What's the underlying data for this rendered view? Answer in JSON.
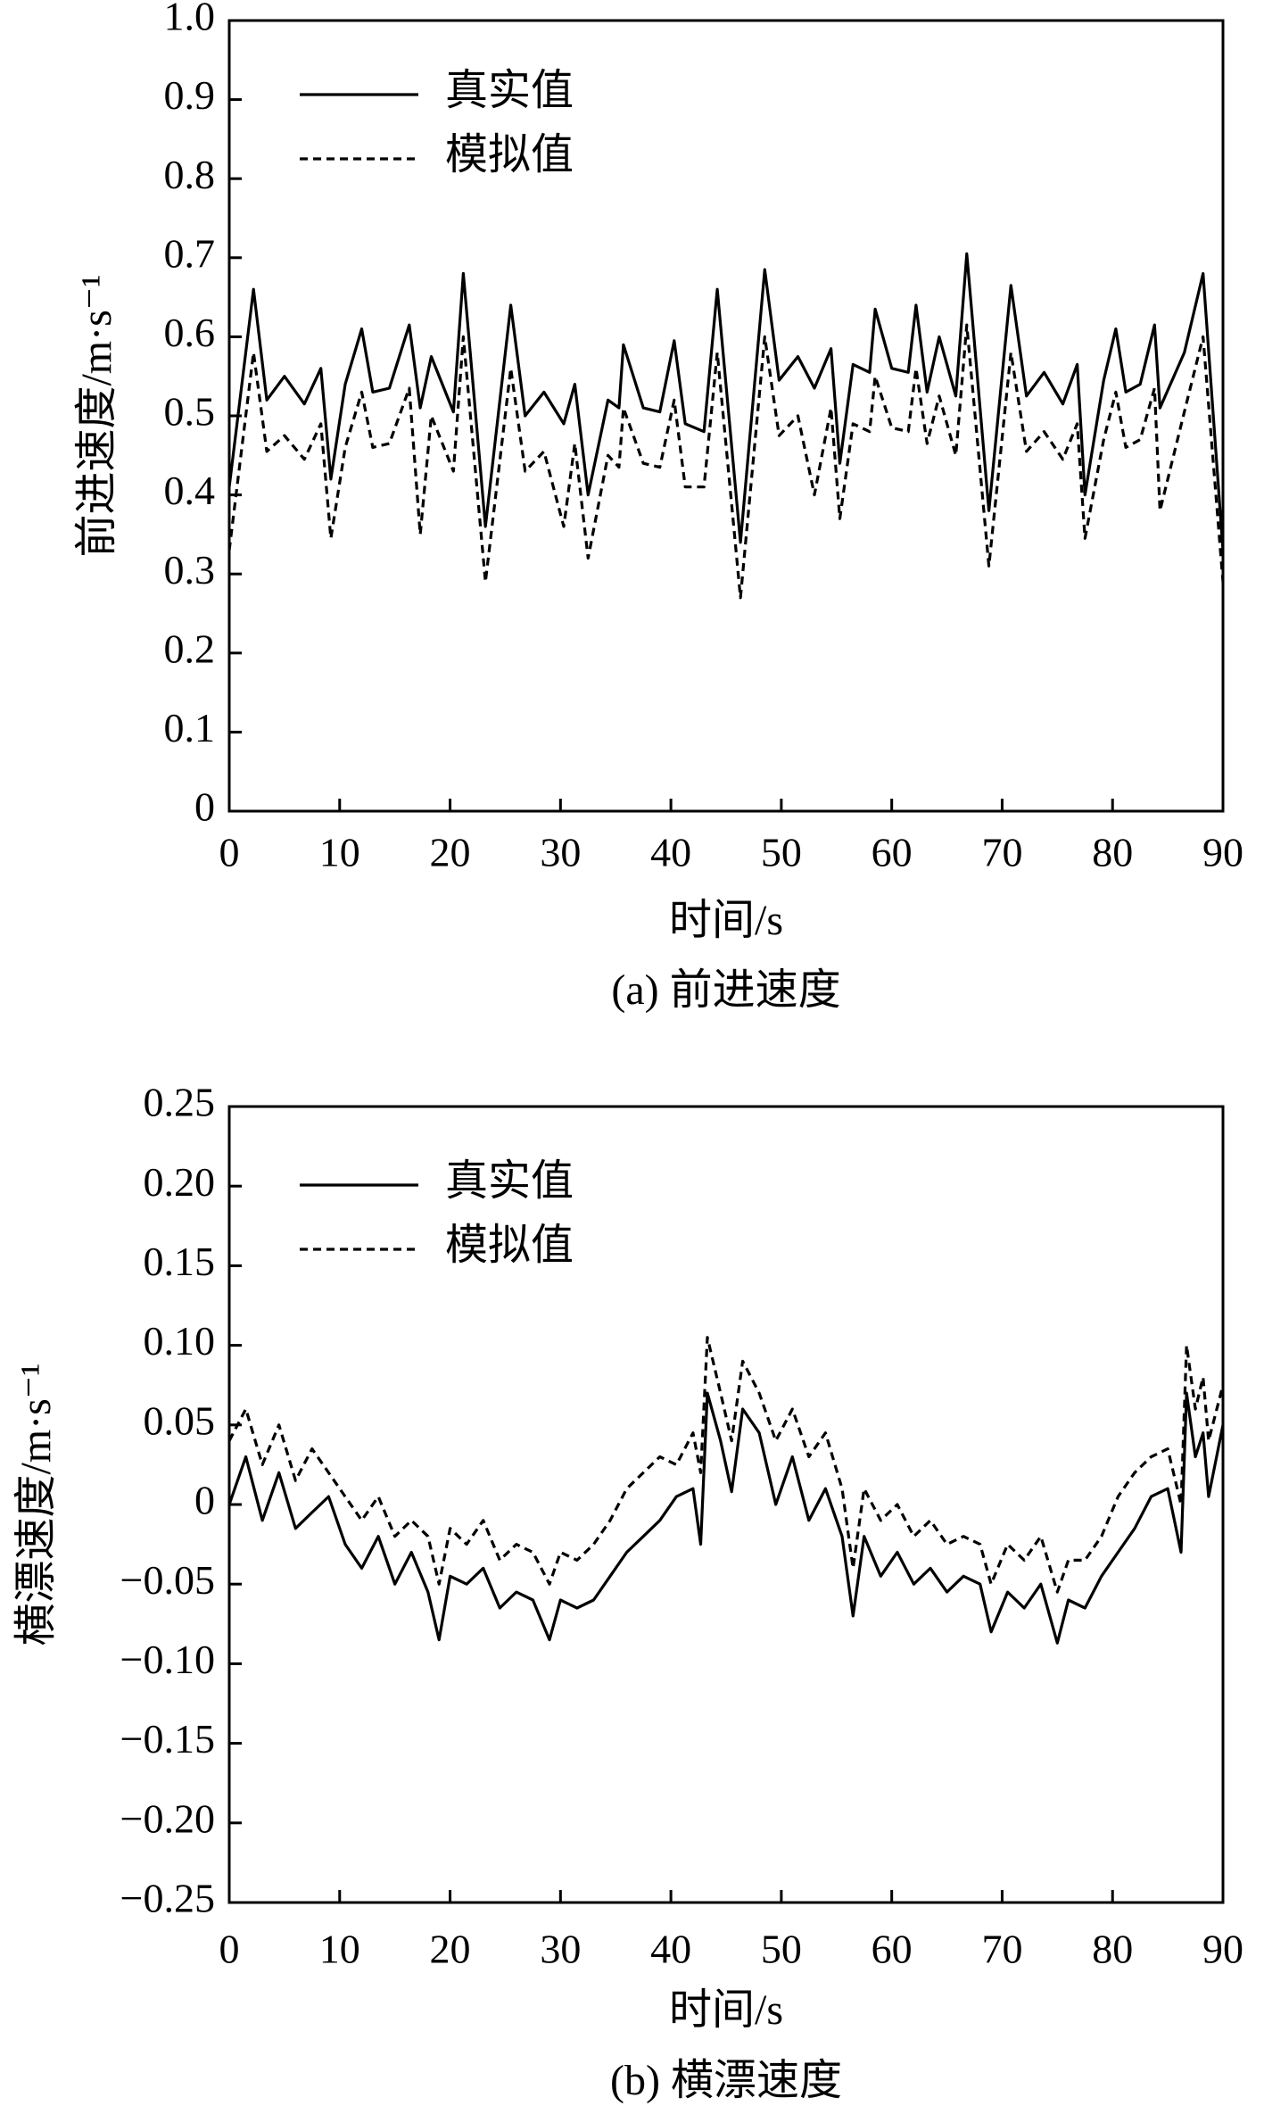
{
  "chart_data": [
    {
      "type": "line",
      "caption": "(a) 前进速度",
      "xlabel": "时间/s",
      "ylabel": "前进速度/m·s⁻¹",
      "x": [
        0,
        2.2,
        3.4,
        5,
        6.8,
        8.3,
        9.2,
        10.5,
        12,
        13,
        14.5,
        16.3,
        17.3,
        18.3,
        20.3,
        21.2,
        23.2,
        25.5,
        26.8,
        28.5,
        30.3,
        31.3,
        32.5,
        34.3,
        35.3,
        35.7,
        37.5,
        39,
        40.3,
        41.3,
        43,
        44.2,
        46.3,
        48.5,
        49.8,
        51.5,
        53,
        54.5,
        55.3,
        56.5,
        58,
        58.5,
        60,
        61.5,
        62.2,
        63.2,
        64.3,
        65.8,
        66.8,
        68.8,
        70.8,
        72.2,
        73.8,
        75.5,
        76.8,
        77.5,
        79.2,
        80.3,
        81.2,
        82.5,
        83.8,
        84.3,
        86.5,
        88.2,
        90
      ],
      "series": [
        {
          "name": "真实值",
          "color": "#000000",
          "line_style": "solid",
          "values": [
            0.41,
            0.66,
            0.52,
            0.55,
            0.515,
            0.56,
            0.42,
            0.54,
            0.61,
            0.53,
            0.535,
            0.615,
            0.51,
            0.575,
            0.505,
            0.68,
            0.36,
            0.64,
            0.5,
            0.53,
            0.49,
            0.54,
            0.4,
            0.52,
            0.51,
            0.59,
            0.51,
            0.505,
            0.595,
            0.49,
            0.48,
            0.66,
            0.34,
            0.685,
            0.545,
            0.575,
            0.535,
            0.585,
            0.44,
            0.565,
            0.555,
            0.635,
            0.56,
            0.555,
            0.64,
            0.53,
            0.6,
            0.525,
            0.705,
            0.38,
            0.665,
            0.525,
            0.555,
            0.515,
            0.565,
            0.4,
            0.545,
            0.61,
            0.53,
            0.54,
            0.615,
            0.51,
            0.58,
            0.68,
            0.33
          ]
        },
        {
          "name": "模拟值",
          "color": "#000000",
          "line_style": "dashed",
          "values": [
            0.33,
            0.58,
            0.455,
            0.475,
            0.445,
            0.49,
            0.345,
            0.46,
            0.53,
            0.46,
            0.465,
            0.535,
            0.35,
            0.5,
            0.43,
            0.6,
            0.29,
            0.56,
            0.43,
            0.455,
            0.36,
            0.465,
            0.32,
            0.45,
            0.435,
            0.51,
            0.44,
            0.435,
            0.52,
            0.41,
            0.41,
            0.58,
            0.27,
            0.6,
            0.475,
            0.5,
            0.4,
            0.51,
            0.37,
            0.49,
            0.48,
            0.55,
            0.485,
            0.48,
            0.56,
            0.465,
            0.525,
            0.45,
            0.615,
            0.31,
            0.58,
            0.455,
            0.48,
            0.445,
            0.49,
            0.345,
            0.47,
            0.53,
            0.46,
            0.47,
            0.535,
            0.38,
            0.505,
            0.6,
            0.29
          ]
        }
      ],
      "xlim": [
        0,
        90
      ],
      "xticks": [
        0,
        10,
        20,
        30,
        40,
        50,
        60,
        70,
        80,
        90
      ],
      "ylim": [
        0,
        1
      ],
      "yticks": [
        0,
        0.1,
        0.2,
        0.3,
        0.4,
        0.5,
        0.6,
        0.7,
        0.8,
        0.9,
        {
          "value": 1,
          "label": "1.0"
        }
      ],
      "grid": false,
      "legend": "upper left"
    },
    {
      "type": "line",
      "caption": "(b) 横漂速度",
      "xlabel": "时间/s",
      "ylabel": "横漂速度/m·s⁻¹",
      "x": [
        0,
        1.5,
        3,
        4.5,
        6,
        7.5,
        9,
        10.5,
        12,
        13.5,
        15,
        16.5,
        18,
        19,
        20,
        21.5,
        23,
        24.5,
        26,
        27.5,
        29,
        30,
        31.5,
        33,
        34.5,
        36,
        37.5,
        39,
        40.5,
        42,
        42.7,
        43.3,
        44.5,
        45.5,
        46.5,
        48,
        49.5,
        51,
        52.5,
        54,
        55.5,
        56.5,
        57.5,
        59,
        60.5,
        62,
        63.5,
        65,
        66.5,
        68,
        69,
        70.5,
        72,
        73.5,
        75,
        76,
        77.5,
        79,
        80.5,
        82,
        83.5,
        85,
        86.2,
        86.7,
        87.5,
        88.2,
        88.7,
        90
      ],
      "series": [
        {
          "name": "真实值",
          "color": "#000000",
          "line_style": "solid",
          "values": [
            0,
            0.03,
            -0.01,
            0.02,
            -0.015,
            -0.005,
            0.005,
            -0.025,
            -0.04,
            -0.02,
            -0.05,
            -0.03,
            -0.055,
            -0.085,
            -0.045,
            -0.05,
            -0.04,
            -0.065,
            -0.055,
            -0.06,
            -0.085,
            -0.06,
            -0.065,
            -0.06,
            -0.045,
            -0.03,
            -0.02,
            -0.01,
            0.005,
            0.01,
            -0.025,
            0.07,
            0.04,
            0.008,
            0.06,
            0.045,
            0,
            0.03,
            -0.01,
            0.01,
            -0.02,
            -0.07,
            -0.02,
            -0.045,
            -0.03,
            -0.05,
            -0.04,
            -0.055,
            -0.045,
            -0.05,
            -0.08,
            -0.055,
            -0.065,
            -0.05,
            -0.087,
            -0.06,
            -0.065,
            -0.045,
            -0.03,
            -0.015,
            0.005,
            0.01,
            -0.03,
            0.07,
            0.03,
            0.045,
            0.005,
            0.05
          ]
        },
        {
          "name": "模拟值",
          "color": "#000000",
          "line_style": "dashed",
          "values": [
            0.04,
            0.06,
            0.025,
            0.05,
            0.015,
            0.035,
            0.02,
            0.005,
            -0.01,
            0.005,
            -0.02,
            -0.01,
            -0.02,
            -0.05,
            -0.015,
            -0.025,
            -0.01,
            -0.035,
            -0.025,
            -0.03,
            -0.05,
            -0.03,
            -0.035,
            -0.025,
            -0.01,
            0.01,
            0.02,
            0.03,
            0.025,
            0.045,
            0.02,
            0.105,
            0.07,
            0.04,
            0.09,
            0.07,
            0.04,
            0.06,
            0.03,
            0.045,
            0.01,
            -0.04,
            0.01,
            -0.01,
            0,
            -0.02,
            -0.01,
            -0.025,
            -0.02,
            -0.025,
            -0.05,
            -0.025,
            -0.035,
            -0.02,
            -0.055,
            -0.035,
            -0.035,
            -0.02,
            0.005,
            0.02,
            0.03,
            0.035,
            0,
            0.1,
            0.06,
            0.08,
            0.04,
            0.075
          ]
        }
      ],
      "xlim": [
        0,
        90
      ],
      "xticks": [
        0,
        10,
        20,
        30,
        40,
        50,
        60,
        70,
        80,
        90
      ],
      "ylim": [
        -0.25,
        0.25
      ],
      "yticks": [
        {
          "value": -0.25,
          "label": "−0.25"
        },
        {
          "value": -0.2,
          "label": "−0.20"
        },
        {
          "value": -0.15,
          "label": "−0.15"
        },
        {
          "value": -0.1,
          "label": "−0.10"
        },
        {
          "value": -0.05,
          "label": "−0.05"
        },
        0,
        0.05,
        {
          "value": 0.1,
          "label": "0.10"
        },
        0.15,
        {
          "value": 0.2,
          "label": "0.20"
        },
        0.25
      ],
      "grid": false,
      "legend": "upper left"
    }
  ]
}
